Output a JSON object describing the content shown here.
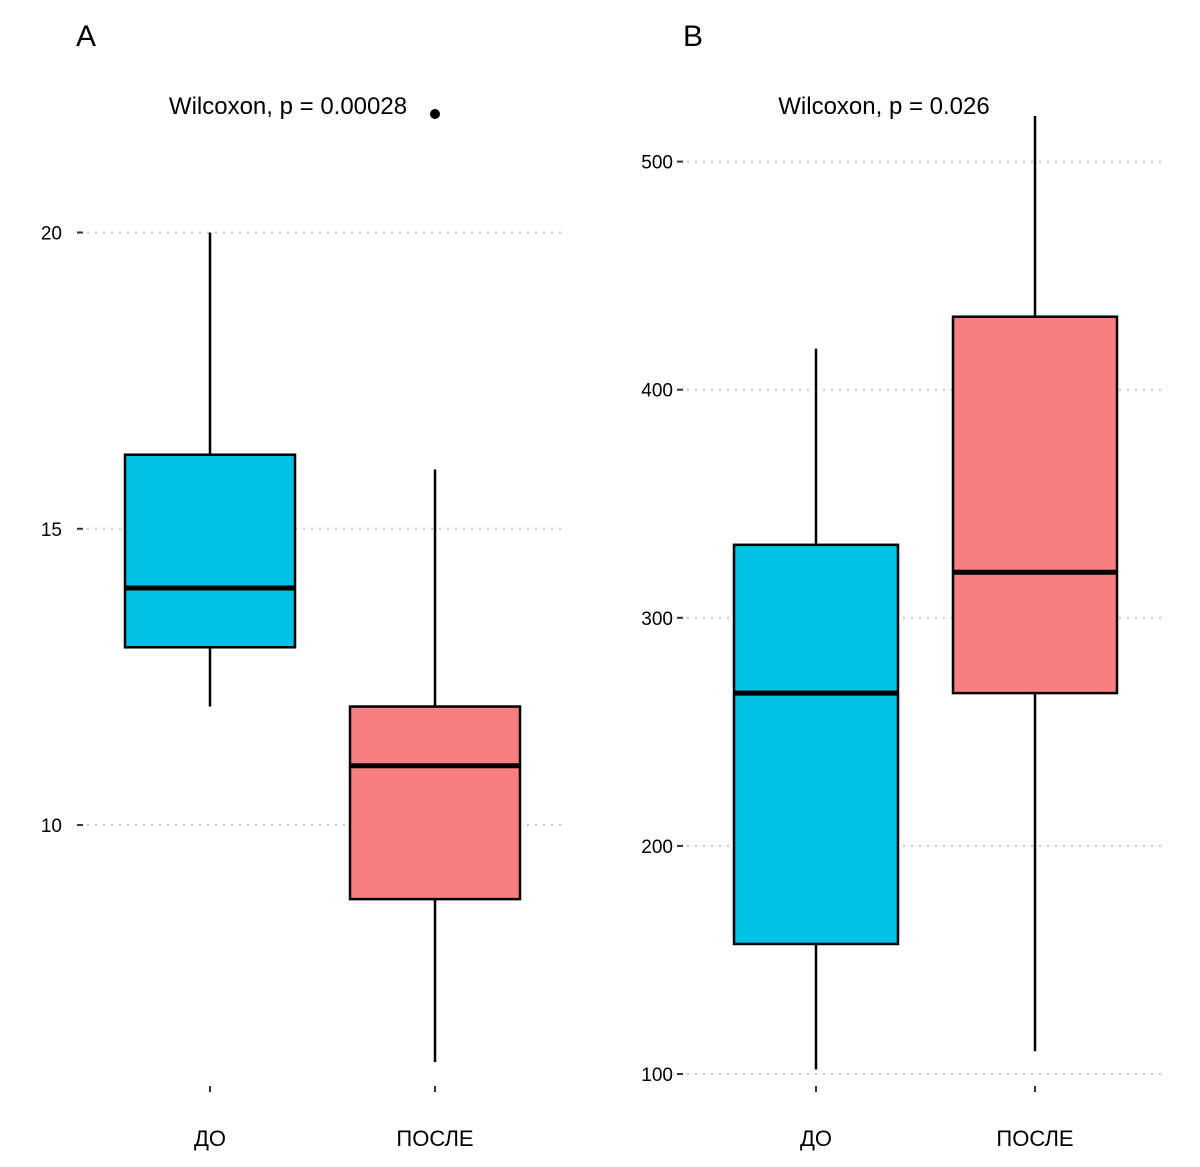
{
  "chart_data": [
    {
      "panel": "A",
      "type": "box",
      "annotation": "Wilcoxon, p = 0.00028",
      "categories": [
        "ДО",
        "ПОСЛЕ"
      ],
      "y_ticks": [
        10,
        15,
        20
      ],
      "ylim": [
        5.9,
        22.0
      ],
      "grid": "horizontal dotted",
      "boxes": [
        {
          "category": "ДО",
          "fill": "#00C0E3",
          "whisker_low": 12.0,
          "q1": 13.0,
          "median": 14.0,
          "q3": 16.25,
          "whisker_high": 20.0,
          "outliers": []
        },
        {
          "category": "ПОСЛЕ",
          "fill": "#F77F7F",
          "whisker_low": 6.0,
          "q1": 8.75,
          "median": 11.0,
          "q3": 12.0,
          "whisker_high": 16.0,
          "outliers": [
            22.0
          ]
        }
      ]
    },
    {
      "panel": "B",
      "type": "box",
      "annotation": "Wilcoxon, p = 0.026",
      "categories": [
        "ДО",
        "ПОСЛЕ"
      ],
      "y_ticks": [
        100,
        200,
        300,
        400,
        500
      ],
      "ylim": [
        100,
        520
      ],
      "grid": "horizontal dotted",
      "boxes": [
        {
          "category": "ДО",
          "fill": "#00C0E3",
          "whisker_low": 102,
          "q1": 157,
          "median": 267,
          "q3": 332,
          "whisker_high": 418,
          "outliers": []
        },
        {
          "category": "ПОСЛЕ",
          "fill": "#F77F7F",
          "whisker_low": 110,
          "q1": 267,
          "median": 320,
          "q3": 432,
          "whisker_high": 520,
          "outliers": []
        }
      ]
    }
  ]
}
